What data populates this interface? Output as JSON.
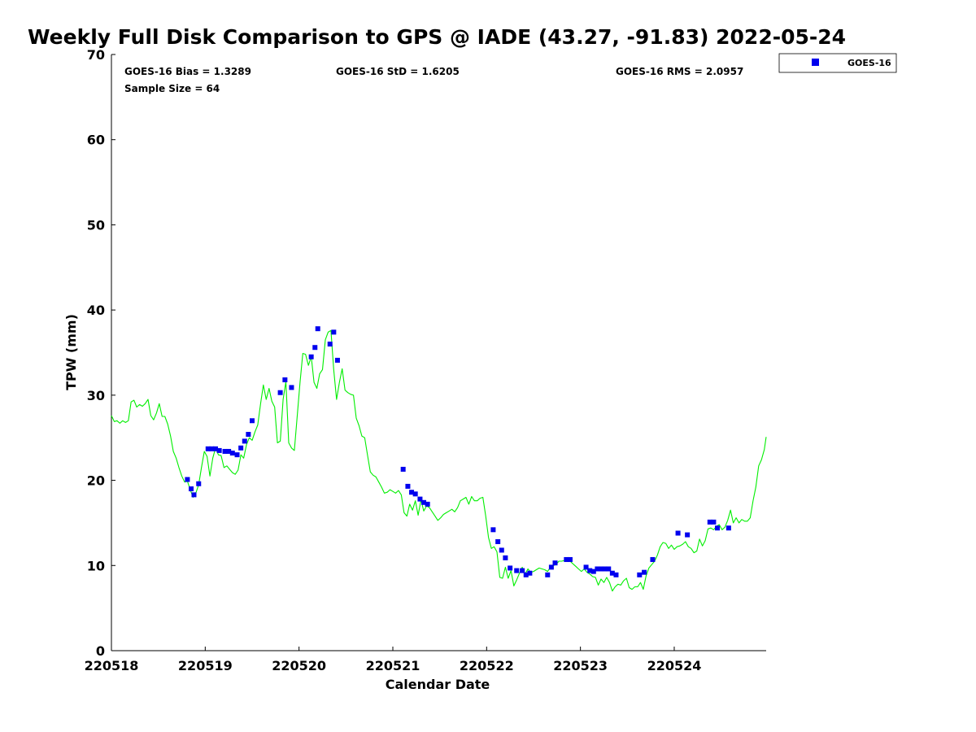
{
  "chart_data": {
    "type": "scatter",
    "title": "Weekly Full Disk Comparison to GPS @ IADE (43.27, -91.83) 2022-05-24",
    "xlabel": "Calendar Date",
    "ylabel": "TPW (mm)",
    "xlim": [
      0,
      6.98
    ],
    "ylim": [
      0,
      70
    ],
    "xtick_values": [
      0,
      1,
      2,
      3,
      4,
      5,
      6
    ],
    "xtick_labels": [
      "220518",
      "220519",
      "220520",
      "220521",
      "220522",
      "220523",
      "220524"
    ],
    "ytick_values": [
      0,
      10,
      20,
      30,
      40,
      50,
      60,
      70
    ],
    "ytick_labels": [
      "0",
      "10",
      "20",
      "30",
      "40",
      "50",
      "60",
      "70"
    ],
    "stats": {
      "bias": "GOES-16 Bias = 1.3289",
      "std": "GOES-16 StD = 1.6205",
      "rms": "GOES-16 RMS = 2.0957",
      "sample": "Sample Size = 64"
    },
    "legend": {
      "position": "top-right",
      "entries": [
        "GOES-16"
      ]
    },
    "series": [
      {
        "name": "GOES-16",
        "kind": "scatter",
        "color": "#0000ee",
        "points": [
          [
            0.81,
            20.1
          ],
          [
            0.85,
            19.0
          ],
          [
            0.88,
            18.3
          ],
          [
            0.93,
            19.6
          ],
          [
            1.03,
            23.7
          ],
          [
            1.07,
            23.7
          ],
          [
            1.11,
            23.7
          ],
          [
            1.15,
            23.5
          ],
          [
            1.21,
            23.4
          ],
          [
            1.25,
            23.4
          ],
          [
            1.29,
            23.2
          ],
          [
            1.34,
            23.0
          ],
          [
            1.38,
            23.8
          ],
          [
            1.42,
            24.6
          ],
          [
            1.46,
            25.4
          ],
          [
            1.5,
            27.0
          ],
          [
            1.8,
            30.3
          ],
          [
            1.85,
            31.8
          ],
          [
            1.92,
            30.9
          ],
          [
            2.13,
            34.5
          ],
          [
            2.17,
            35.6
          ],
          [
            2.2,
            37.8
          ],
          [
            2.33,
            36.0
          ],
          [
            2.37,
            37.4
          ],
          [
            2.41,
            34.1
          ],
          [
            3.11,
            21.3
          ],
          [
            3.16,
            19.3
          ],
          [
            3.2,
            18.6
          ],
          [
            3.24,
            18.4
          ],
          [
            3.29,
            17.8
          ],
          [
            3.33,
            17.4
          ],
          [
            3.37,
            17.2
          ],
          [
            4.07,
            14.2
          ],
          [
            4.12,
            12.8
          ],
          [
            4.16,
            11.8
          ],
          [
            4.2,
            10.9
          ],
          [
            4.25,
            9.7
          ],
          [
            4.32,
            9.4
          ],
          [
            4.38,
            9.4
          ],
          [
            4.42,
            8.9
          ],
          [
            4.46,
            9.1
          ],
          [
            4.65,
            8.9
          ],
          [
            4.69,
            9.8
          ],
          [
            4.73,
            10.3
          ],
          [
            4.85,
            10.7
          ],
          [
            4.89,
            10.7
          ],
          [
            5.06,
            9.8
          ],
          [
            5.1,
            9.4
          ],
          [
            5.14,
            9.3
          ],
          [
            5.18,
            9.6
          ],
          [
            5.22,
            9.6
          ],
          [
            5.26,
            9.6
          ],
          [
            5.3,
            9.6
          ],
          [
            5.34,
            9.1
          ],
          [
            5.38,
            8.9
          ],
          [
            5.63,
            8.9
          ],
          [
            5.68,
            9.2
          ],
          [
            5.77,
            10.7
          ],
          [
            6.04,
            13.8
          ],
          [
            6.14,
            13.6
          ],
          [
            6.38,
            15.1
          ],
          [
            6.42,
            15.1
          ],
          [
            6.46,
            14.4
          ],
          [
            6.58,
            14.4
          ]
        ]
      },
      {
        "name": "GPS",
        "kind": "line",
        "color": "#00ee00",
        "points": [
          [
            0.0,
            27.6
          ],
          [
            0.03,
            26.9
          ],
          [
            0.06,
            27.0
          ],
          [
            0.09,
            26.7
          ],
          [
            0.12,
            27.0
          ],
          [
            0.15,
            26.8
          ],
          [
            0.18,
            27.0
          ],
          [
            0.21,
            29.2
          ],
          [
            0.24,
            29.4
          ],
          [
            0.27,
            28.6
          ],
          [
            0.3,
            28.9
          ],
          [
            0.33,
            28.7
          ],
          [
            0.36,
            29.0
          ],
          [
            0.39,
            29.5
          ],
          [
            0.42,
            27.6
          ],
          [
            0.45,
            27.1
          ],
          [
            0.48,
            27.9
          ],
          [
            0.51,
            29.0
          ],
          [
            0.54,
            27.5
          ],
          [
            0.57,
            27.5
          ],
          [
            0.6,
            26.6
          ],
          [
            0.63,
            25.2
          ],
          [
            0.66,
            23.4
          ],
          [
            0.69,
            22.6
          ],
          [
            0.72,
            21.5
          ],
          [
            0.75,
            20.5
          ],
          [
            0.78,
            19.8
          ],
          [
            0.81,
            19.9
          ],
          [
            0.84,
            18.9
          ],
          [
            0.87,
            18.0
          ],
          [
            0.9,
            18.5
          ],
          [
            0.93,
            19.5
          ],
          [
            0.96,
            21.5
          ],
          [
            0.99,
            23.4
          ],
          [
            1.02,
            22.8
          ],
          [
            1.05,
            20.5
          ],
          [
            1.08,
            22.6
          ],
          [
            1.11,
            23.8
          ],
          [
            1.14,
            23.0
          ],
          [
            1.17,
            22.9
          ],
          [
            1.2,
            21.5
          ],
          [
            1.23,
            21.7
          ],
          [
            1.26,
            21.3
          ],
          [
            1.29,
            20.9
          ],
          [
            1.32,
            20.7
          ],
          [
            1.35,
            21.2
          ],
          [
            1.38,
            23.0
          ],
          [
            1.41,
            22.6
          ],
          [
            1.44,
            24.2
          ],
          [
            1.47,
            25.0
          ],
          [
            1.5,
            24.7
          ],
          [
            1.53,
            25.7
          ],
          [
            1.56,
            26.5
          ],
          [
            1.59,
            29.0
          ],
          [
            1.62,
            31.2
          ],
          [
            1.65,
            29.5
          ],
          [
            1.68,
            30.8
          ],
          [
            1.71,
            29.3
          ],
          [
            1.74,
            28.6
          ],
          [
            1.77,
            24.4
          ],
          [
            1.8,
            24.6
          ],
          [
            1.83,
            29.5
          ],
          [
            1.86,
            31.6
          ],
          [
            1.89,
            24.4
          ],
          [
            1.92,
            23.8
          ],
          [
            1.95,
            23.5
          ],
          [
            1.98,
            27.5
          ],
          [
            2.01,
            31.4
          ],
          [
            2.04,
            34.9
          ],
          [
            2.07,
            34.8
          ],
          [
            2.1,
            33.5
          ],
          [
            2.13,
            34.5
          ],
          [
            2.16,
            31.5
          ],
          [
            2.19,
            30.8
          ],
          [
            2.22,
            32.5
          ],
          [
            2.25,
            33.0
          ],
          [
            2.28,
            36.5
          ],
          [
            2.31,
            37.4
          ],
          [
            2.34,
            37.6
          ],
          [
            2.37,
            33.0
          ],
          [
            2.4,
            29.5
          ],
          [
            2.43,
            31.5
          ],
          [
            2.46,
            33.1
          ],
          [
            2.49,
            30.6
          ],
          [
            2.52,
            30.3
          ],
          [
            2.55,
            30.1
          ],
          [
            2.58,
            30.0
          ],
          [
            2.61,
            27.3
          ],
          [
            2.64,
            26.4
          ],
          [
            2.67,
            25.2
          ],
          [
            2.7,
            25.0
          ],
          [
            2.73,
            23.0
          ],
          [
            2.76,
            21.0
          ],
          [
            2.79,
            20.6
          ],
          [
            2.82,
            20.4
          ],
          [
            2.85,
            19.8
          ],
          [
            2.88,
            19.2
          ],
          [
            2.91,
            18.5
          ],
          [
            2.94,
            18.6
          ],
          [
            2.97,
            18.9
          ],
          [
            3.0,
            18.7
          ],
          [
            3.03,
            18.5
          ],
          [
            3.06,
            18.8
          ],
          [
            3.09,
            18.3
          ],
          [
            3.12,
            16.2
          ],
          [
            3.15,
            15.8
          ],
          [
            3.18,
            17.2
          ],
          [
            3.21,
            16.5
          ],
          [
            3.24,
            17.6
          ],
          [
            3.27,
            15.9
          ],
          [
            3.3,
            17.7
          ],
          [
            3.33,
            16.4
          ],
          [
            3.36,
            17.0
          ],
          [
            3.39,
            16.8
          ],
          [
            3.42,
            16.3
          ],
          [
            3.45,
            15.8
          ],
          [
            3.48,
            15.3
          ],
          [
            3.51,
            15.6
          ],
          [
            3.54,
            16.0
          ],
          [
            3.57,
            16.2
          ],
          [
            3.6,
            16.4
          ],
          [
            3.63,
            16.6
          ],
          [
            3.66,
            16.3
          ],
          [
            3.69,
            16.8
          ],
          [
            3.72,
            17.6
          ],
          [
            3.75,
            17.8
          ],
          [
            3.78,
            18.0
          ],
          [
            3.81,
            17.2
          ],
          [
            3.84,
            18.1
          ],
          [
            3.87,
            17.6
          ],
          [
            3.9,
            17.6
          ],
          [
            3.93,
            17.9
          ],
          [
            3.96,
            18.0
          ],
          [
            3.99,
            15.8
          ],
          [
            4.02,
            13.3
          ],
          [
            4.05,
            12.0
          ],
          [
            4.08,
            12.2
          ],
          [
            4.11,
            11.6
          ],
          [
            4.14,
            8.6
          ],
          [
            4.17,
            8.5
          ],
          [
            4.2,
            9.8
          ],
          [
            4.23,
            8.5
          ],
          [
            4.26,
            9.4
          ],
          [
            4.29,
            7.6
          ],
          [
            4.32,
            8.3
          ],
          [
            4.35,
            9.1
          ],
          [
            4.38,
            9.8
          ],
          [
            4.41,
            9.0
          ],
          [
            4.44,
            9.6
          ],
          [
            4.47,
            9.2
          ],
          [
            4.5,
            9.3
          ],
          [
            4.53,
            9.5
          ],
          [
            4.56,
            9.7
          ],
          [
            4.59,
            9.6
          ],
          [
            4.62,
            9.5
          ],
          [
            4.65,
            9.3
          ],
          [
            4.68,
            9.8
          ],
          [
            4.71,
            10.0
          ],
          [
            4.74,
            10.1
          ],
          [
            4.77,
            10.5
          ],
          [
            4.8,
            10.5
          ],
          [
            4.83,
            10.6
          ],
          [
            4.86,
            10.8
          ],
          [
            4.89,
            10.5
          ],
          [
            4.92,
            10.2
          ],
          [
            4.95,
            9.9
          ],
          [
            4.98,
            9.6
          ],
          [
            5.01,
            9.3
          ],
          [
            5.04,
            9.6
          ],
          [
            5.07,
            9.2
          ],
          [
            5.1,
            9.0
          ],
          [
            5.13,
            8.7
          ],
          [
            5.16,
            8.6
          ],
          [
            5.19,
            7.7
          ],
          [
            5.22,
            8.4
          ],
          [
            5.25,
            8.0
          ],
          [
            5.28,
            8.6
          ],
          [
            5.31,
            8.0
          ],
          [
            5.34,
            7.0
          ],
          [
            5.37,
            7.5
          ],
          [
            5.4,
            7.8
          ],
          [
            5.43,
            7.7
          ],
          [
            5.46,
            8.2
          ],
          [
            5.49,
            8.5
          ],
          [
            5.52,
            7.4
          ],
          [
            5.55,
            7.2
          ],
          [
            5.58,
            7.5
          ],
          [
            5.61,
            7.5
          ],
          [
            5.64,
            8.0
          ],
          [
            5.67,
            7.2
          ],
          [
            5.7,
            8.8
          ],
          [
            5.73,
            9.7
          ],
          [
            5.76,
            10.1
          ],
          [
            5.79,
            10.5
          ],
          [
            5.82,
            11.2
          ],
          [
            5.85,
            12.2
          ],
          [
            5.88,
            12.7
          ],
          [
            5.91,
            12.6
          ],
          [
            5.94,
            12.0
          ],
          [
            5.97,
            12.4
          ],
          [
            6.0,
            11.9
          ],
          [
            6.03,
            12.2
          ],
          [
            6.06,
            12.3
          ],
          [
            6.09,
            12.5
          ],
          [
            6.12,
            12.8
          ],
          [
            6.15,
            12.2
          ],
          [
            6.18,
            12.0
          ],
          [
            6.21,
            11.5
          ],
          [
            6.24,
            11.7
          ],
          [
            6.27,
            13.1
          ],
          [
            6.3,
            12.3
          ],
          [
            6.33,
            12.9
          ],
          [
            6.36,
            14.3
          ],
          [
            6.39,
            14.4
          ],
          [
            6.42,
            14.2
          ],
          [
            6.45,
            14.6
          ],
          [
            6.48,
            14.8
          ],
          [
            6.51,
            14.2
          ],
          [
            6.54,
            14.5
          ],
          [
            6.57,
            15.3
          ],
          [
            6.6,
            16.5
          ],
          [
            6.63,
            15.0
          ],
          [
            6.66,
            15.6
          ],
          [
            6.69,
            15.0
          ],
          [
            6.72,
            15.4
          ],
          [
            6.75,
            15.2
          ],
          [
            6.78,
            15.2
          ],
          [
            6.81,
            15.6
          ],
          [
            6.84,
            17.6
          ],
          [
            6.87,
            19.2
          ],
          [
            6.9,
            21.7
          ],
          [
            6.93,
            22.4
          ],
          [
            6.96,
            23.6
          ],
          [
            6.98,
            25.1
          ]
        ]
      }
    ]
  }
}
